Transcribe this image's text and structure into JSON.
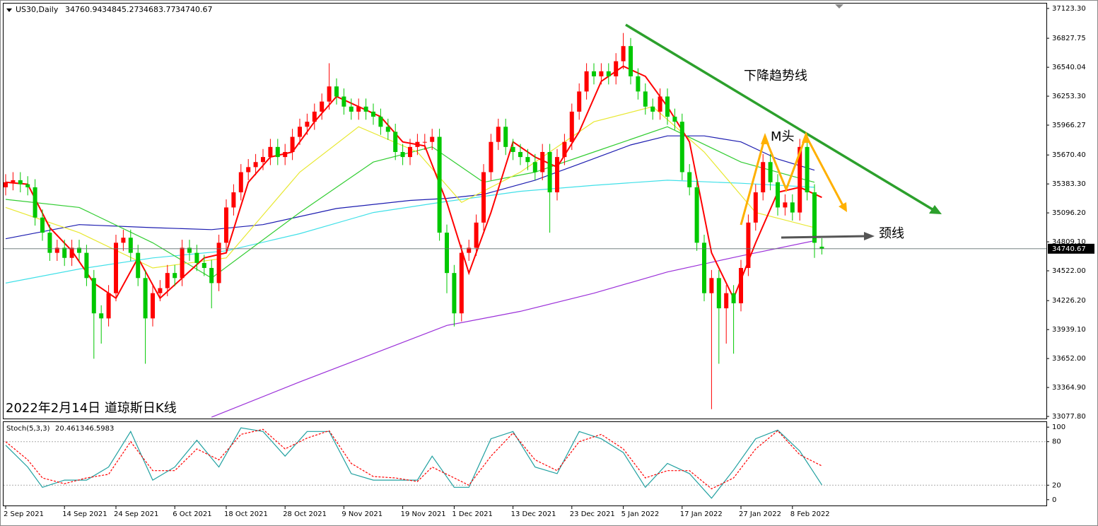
{
  "chart_data": [
    {
      "type": "candlestick",
      "symbol": "US30,Daily",
      "caption": "2022年2月14日 道琼斯日K线",
      "annotations": {
        "trend": "下降趋势线",
        "m_top": "M头",
        "neckline": "颈线"
      },
      "up_color": "#ff0000",
      "down_color": "#00c800",
      "last_price_line": true,
      "categories": [
        "2 Sep 2021",
        null,
        null,
        null,
        null,
        null,
        null,
        null,
        "14 Sep 2021",
        null,
        null,
        null,
        null,
        null,
        null,
        "24 Sep 2021",
        null,
        null,
        null,
        null,
        null,
        null,
        null,
        "6 Oct 2021",
        null,
        null,
        null,
        null,
        null,
        null,
        "18 Oct 2021",
        null,
        null,
        null,
        null,
        null,
        null,
        null,
        "28 Oct 2021",
        null,
        null,
        null,
        null,
        null,
        null,
        null,
        "9 Nov 2021",
        null,
        null,
        null,
        null,
        null,
        null,
        null,
        "19 Nov 2021",
        null,
        null,
        null,
        null,
        null,
        null,
        "1 Dec 2021",
        null,
        null,
        null,
        null,
        null,
        null,
        null,
        "13 Dec 2021",
        null,
        null,
        null,
        null,
        null,
        null,
        null,
        "23 Dec 2021",
        null,
        null,
        null,
        null,
        null,
        null,
        "5 Jan 2022",
        null,
        null,
        null,
        null,
        null,
        null,
        null,
        "17 Jan 2022",
        null,
        null,
        null,
        null,
        null,
        null,
        null,
        "27 Jan 2022",
        null,
        null,
        null,
        null,
        null,
        null,
        "8 Feb 2022",
        null,
        null,
        null,
        null
      ],
      "open": [
        35350,
        35400,
        35420,
        35380,
        35350,
        35050,
        34900,
        34700,
        34750,
        34650,
        34750,
        34700,
        34450,
        34100,
        34050,
        34300,
        34800,
        34850,
        34700,
        34450,
        34050,
        34300,
        34350,
        34500,
        34450,
        34750,
        34700,
        34600,
        34550,
        34400,
        34800,
        35150,
        35300,
        35500,
        35550,
        35600,
        35650,
        35750,
        35650,
        35700,
        35850,
        35950,
        36000,
        36100,
        36200,
        36350,
        36250,
        36150,
        36100,
        36150,
        36100,
        36050,
        35950,
        35900,
        35700,
        35650,
        35750,
        35800,
        35800,
        35850,
        34900,
        34500,
        34100,
        34700,
        34750,
        35000,
        35500,
        35800,
        35950,
        35750,
        35700,
        35650,
        35600,
        35500,
        35700,
        35300,
        35650,
        35800,
        36100,
        36300,
        36500,
        36450,
        36500,
        36450,
        36600,
        36750,
        36450,
        36300,
        36150,
        36100,
        36250,
        36050,
        36000,
        35500,
        35350,
        34800,
        34300,
        34450,
        34150,
        34300,
        34200,
        34550,
        35000,
        35300,
        35600,
        35400,
        35150,
        35200,
        35100,
        35750,
        35300,
        34760.94
      ],
      "high": [
        35480,
        35500,
        35500,
        35460,
        35430,
        35130,
        34980,
        34830,
        34830,
        34830,
        34830,
        34780,
        34530,
        34180,
        34380,
        34880,
        34930,
        34930,
        34780,
        34530,
        34380,
        34430,
        34580,
        34580,
        34830,
        34830,
        34780,
        34680,
        34630,
        34880,
        35230,
        35380,
        35580,
        35630,
        35680,
        35730,
        35830,
        35830,
        35780,
        35930,
        36030,
        36080,
        36180,
        36280,
        36580,
        36430,
        36330,
        36230,
        36230,
        36230,
        36180,
        36130,
        36030,
        35980,
        35780,
        35830,
        35880,
        35880,
        35930,
        35930,
        34980,
        34580,
        34780,
        34830,
        35080,
        35580,
        35880,
        36030,
        36030,
        35830,
        35780,
        35730,
        35680,
        35780,
        35780,
        35730,
        35880,
        36180,
        36380,
        36580,
        36580,
        36580,
        36580,
        36680,
        36880,
        36830,
        36530,
        36380,
        36230,
        36330,
        36330,
        36130,
        36080,
        35580,
        35430,
        34880,
        34530,
        34530,
        34380,
        34380,
        34630,
        35080,
        35380,
        35680,
        35680,
        35480,
        35280,
        35280,
        35830,
        35830,
        35380,
        34845.27
      ],
      "low": [
        35270,
        35320,
        35300,
        35270,
        34970,
        34820,
        34620,
        34620,
        34570,
        34570,
        34620,
        34370,
        33650,
        33800,
        33970,
        34220,
        34720,
        34620,
        34370,
        33600,
        33970,
        34220,
        34270,
        34370,
        34370,
        34620,
        34520,
        34470,
        34150,
        34320,
        34720,
        35070,
        35220,
        35420,
        35470,
        35520,
        35570,
        35570,
        35570,
        35620,
        35770,
        35870,
        35920,
        36020,
        36120,
        36170,
        36070,
        36020,
        36020,
        36020,
        35970,
        35870,
        35820,
        35620,
        35570,
        35570,
        35670,
        35720,
        35720,
        34820,
        34300,
        33970,
        34020,
        34620,
        34670,
        34920,
        35420,
        35720,
        35670,
        35620,
        35570,
        35520,
        35420,
        35420,
        34900,
        35220,
        35570,
        35720,
        36020,
        36220,
        36370,
        36370,
        36370,
        36370,
        36520,
        36370,
        36220,
        36070,
        36020,
        36020,
        35970,
        35920,
        35420,
        35270,
        34720,
        34220,
        33150,
        33600,
        33800,
        33700,
        34120,
        34470,
        34920,
        35220,
        35320,
        35070,
        35070,
        35020,
        35020,
        35220,
        34650,
        34683.77
      ],
      "close": [
        35400,
        35420,
        35380,
        35350,
        35050,
        34900,
        34700,
        34750,
        34650,
        34750,
        34700,
        34450,
        34100,
        34050,
        34300,
        34800,
        34850,
        34700,
        34450,
        34050,
        34300,
        34350,
        34500,
        34450,
        34750,
        34700,
        34600,
        34550,
        34400,
        34800,
        35150,
        35300,
        35500,
        35550,
        35600,
        35650,
        35750,
        35650,
        35700,
        35850,
        35950,
        36000,
        36100,
        36200,
        36350,
        36250,
        36150,
        36100,
        36150,
        36100,
        36050,
        35950,
        35900,
        35700,
        35650,
        35750,
        35800,
        35800,
        35850,
        34900,
        34500,
        34100,
        34700,
        34750,
        35000,
        35500,
        35800,
        35950,
        35750,
        35700,
        35650,
        35600,
        35500,
        35700,
        35300,
        35650,
        35800,
        36100,
        36300,
        36500,
        36450,
        36500,
        36450,
        36600,
        36750,
        36450,
        36300,
        36150,
        36100,
        36250,
        36050,
        36000,
        35500,
        35350,
        34800,
        34300,
        34450,
        34150,
        34300,
        34200,
        34550,
        35000,
        35300,
        35600,
        35400,
        35150,
        35200,
        35100,
        35750,
        35300,
        34800,
        34740.67
      ],
      "overlays": [
        {
          "color": "#9b30d9",
          "x": [
            28,
            40,
            50,
            60,
            70,
            80,
            90,
            100,
            110
          ],
          "values": [
            33070,
            33420,
            33700,
            33980,
            34120,
            34300,
            34510,
            34670,
            34820
          ]
        },
        {
          "color": "#40e0e8",
          "x": [
            0,
            10,
            20,
            30,
            40,
            50,
            60,
            70,
            80,
            90,
            100,
            110
          ],
          "values": [
            34400,
            34540,
            34650,
            34720,
            34890,
            35100,
            35210,
            35310,
            35370,
            35420,
            35390,
            35350
          ]
        },
        {
          "color": "#1c1cb0",
          "x": [
            0,
            10,
            20,
            28,
            35,
            45,
            55,
            60,
            65,
            72,
            78,
            85,
            90,
            95,
            100,
            105,
            110
          ],
          "values": [
            34840,
            34980,
            34950,
            34930,
            34980,
            35140,
            35220,
            35240,
            35280,
            35420,
            35580,
            35770,
            35860,
            35860,
            35800,
            35630,
            35520
          ]
        },
        {
          "color": "#32cd32",
          "x": [
            0,
            10,
            20,
            28,
            40,
            50,
            58,
            65,
            72,
            80,
            90,
            100,
            110
          ],
          "values": [
            35230,
            35150,
            34800,
            34450,
            35100,
            35600,
            35750,
            35400,
            35500,
            35700,
            35950,
            35600,
            35400
          ]
        },
        {
          "color": "#e8e830",
          "x": [
            0,
            10,
            20,
            30,
            40,
            48,
            56,
            62,
            70,
            80,
            88,
            95,
            102,
            110
          ],
          "values": [
            35150,
            34900,
            34550,
            34650,
            35500,
            35950,
            35700,
            35200,
            35500,
            36000,
            36150,
            35700,
            35100,
            34950
          ]
        },
        {
          "color": "#ff0000",
          "width": 2,
          "x": [
            0,
            3,
            6,
            9,
            12,
            15,
            18,
            21,
            24,
            27,
            30,
            33,
            36,
            39,
            42,
            45,
            48,
            51,
            54,
            57,
            60,
            63,
            66,
            69,
            72,
            75,
            78,
            81,
            84,
            87,
            90,
            93,
            96,
            99,
            102,
            105,
            108,
            111
          ],
          "values": [
            35400,
            35380,
            34950,
            34720,
            34400,
            34250,
            34650,
            34250,
            34450,
            34650,
            34700,
            35400,
            35650,
            35700,
            36000,
            36250,
            36150,
            36050,
            35800,
            35760,
            35200,
            34500,
            35100,
            35800,
            35650,
            35550,
            35900,
            36400,
            36550,
            36450,
            36150,
            35800,
            34700,
            34250,
            34800,
            35300,
            35350,
            35250
          ]
        }
      ],
      "ylim": [
        33057,
        37172
      ],
      "yticks": [
        {
          "value": 37123.3,
          "label": "37123.30"
        },
        36827.75,
        {
          "value": 36540.04,
          "label": "36540.04"
        },
        {
          "value": 36253.3,
          "label": "36253.30"
        },
        35966.27,
        {
          "value": 35670.4,
          "label": "35670.40"
        },
        {
          "value": 35383.3,
          "label": "35383.30"
        },
        {
          "value": 35096.2,
          "label": "35096.20"
        },
        {
          "value": 34809.1,
          "label": "34809.10"
        },
        {
          "value": 34522,
          "label": "34522.00"
        },
        {
          "value": 34226.2,
          "label": "34226.20"
        },
        {
          "value": 33939.1,
          "label": "33939.10"
        },
        {
          "value": 33652,
          "label": "33652.00"
        },
        {
          "value": 33364.9,
          "label": "33364.90"
        },
        {
          "value": 33077.8,
          "label": "33077.80"
        }
      ]
    },
    {
      "type": "line",
      "name": "Stoch(5,3,3)",
      "ylim": [
        -8,
        107
      ],
      "yticks": [
        0,
        20,
        80,
        100
      ],
      "levels": [
        20,
        80
      ],
      "series": [
        {
          "color": "#20a0a0",
          "x": [
            0,
            3,
            5,
            8,
            11,
            14,
            17,
            20,
            23,
            26,
            29,
            32,
            35,
            38,
            41,
            44,
            47,
            50,
            53,
            56,
            58,
            61,
            63,
            66,
            69,
            72,
            75,
            78,
            81,
            84,
            87,
            90,
            93,
            96,
            99,
            102,
            105,
            108,
            111
          ],
          "values": [
            75,
            45,
            17,
            27,
            27,
            45,
            94,
            27,
            45,
            82,
            45,
            99,
            94,
            60,
            94,
            94,
            36,
            27,
            27,
            27,
            60,
            17,
            17,
            84,
            94,
            45,
            36,
            94,
            84,
            65,
            17,
            50,
            36,
            2,
            41,
            84,
            96,
            67,
            20.4613
          ]
        },
        {
          "color": "#ff0000",
          "dashed": true,
          "x": [
            0,
            3,
            5,
            8,
            11,
            14,
            17,
            20,
            23,
            26,
            29,
            32,
            35,
            38,
            41,
            44,
            47,
            50,
            53,
            56,
            58,
            61,
            63,
            66,
            69,
            72,
            75,
            78,
            81,
            84,
            87,
            90,
            93,
            96,
            99,
            102,
            105,
            108,
            111
          ],
          "values": [
            80,
            55,
            30,
            22,
            30,
            35,
            80,
            40,
            40,
            70,
            55,
            90,
            97,
            70,
            85,
            95,
            50,
            32,
            30,
            25,
            45,
            30,
            20,
            60,
            92,
            55,
            40,
            80,
            90,
            70,
            30,
            40,
            40,
            15,
            30,
            70,
            95,
            62,
            46.5983
          ]
        }
      ]
    }
  ]
}
